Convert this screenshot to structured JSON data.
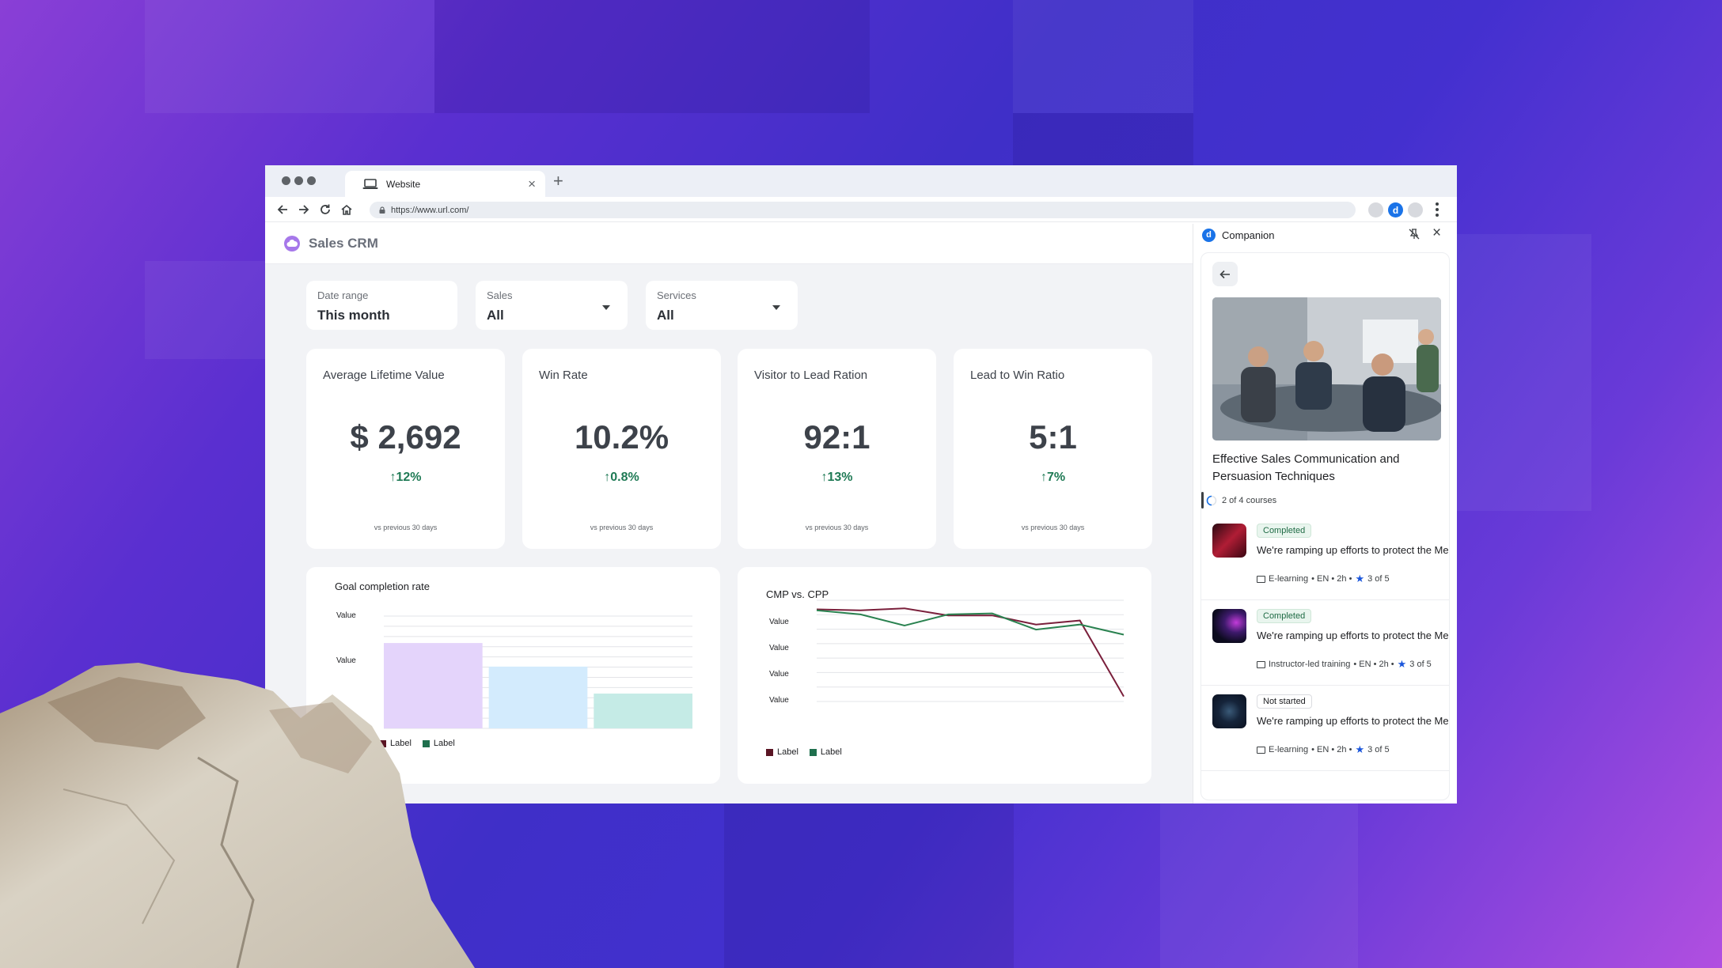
{
  "browser": {
    "tab_title": "Website",
    "new_tab_label": "+",
    "tab_close_label": "×",
    "url": "https://www.url.com/",
    "extension_letter": "d"
  },
  "app": {
    "title": "Sales CRM"
  },
  "filters": [
    {
      "label": "Date range",
      "value": "This month",
      "has_dropdown": false
    },
    {
      "label": "Sales",
      "value": "All",
      "has_dropdown": true
    },
    {
      "label": "Services",
      "value": "All",
      "has_dropdown": true
    }
  ],
  "kpis": [
    {
      "title": "Average Lifetime Value",
      "value": "$ 2,692",
      "change": "↑12%",
      "subtitle": "vs previous 30 days"
    },
    {
      "title": "Win Rate",
      "value": "10.2%",
      "change": "↑0.8%",
      "subtitle": "vs previous 30 days"
    },
    {
      "title": "Visitor to Lead Ration",
      "value": "92:1",
      "change": "↑13%",
      "subtitle": "vs previous 30 days"
    },
    {
      "title": "Lead to Win Ratio",
      "value": "5:1",
      "change": "↑7%",
      "subtitle": "vs previous 30 days"
    }
  ],
  "chart_data": [
    {
      "type": "bar",
      "title": "Goal completion rate",
      "y_tick_labels": [
        "Value",
        "Value"
      ],
      "values": [
        0.76,
        0.55,
        0.31
      ],
      "colors": [
        "#e4d4fb",
        "#d3ebfd",
        "#c5ebe6"
      ],
      "legend": [
        {
          "label": "Label",
          "color": "#5a1524"
        },
        {
          "label": "Label",
          "color": "#1f6f4d"
        }
      ]
    },
    {
      "type": "line",
      "title": "CMP vs. CPP",
      "y_tick_labels": [
        "Value",
        "Value",
        "Value",
        "Value"
      ],
      "series": [
        {
          "name": "Label",
          "color": "#7a1f3b",
          "values": [
            0.91,
            0.9,
            0.92,
            0.85,
            0.85,
            0.76,
            0.8,
            0.05
          ]
        },
        {
          "name": "Label",
          "color": "#2a8250",
          "values": [
            0.9,
            0.86,
            0.75,
            0.86,
            0.87,
            0.71,
            0.76,
            0.66
          ]
        }
      ],
      "legend": [
        {
          "label": "Label",
          "color": "#5a1524"
        },
        {
          "label": "Label",
          "color": "#1f6f4d"
        }
      ]
    }
  ],
  "companion": {
    "title": "Companion",
    "logo_letter": "d",
    "close_label": "×",
    "course_title": "Effective Sales Communication and Persuasion Techniques",
    "progress_text": "2 of 4 courses",
    "items": [
      {
        "status": "Completed",
        "completed": true,
        "description": "We're ramping up efforts to protect the Medium community from spam and fraud",
        "type": "E-learning",
        "meta": "• EN • 2h •",
        "rating": "3 of 5",
        "thumb": "red"
      },
      {
        "status": "Completed",
        "completed": true,
        "description": "We're ramping up efforts to protect the Medium community from spam and fraud",
        "type": "Instructor-led training",
        "meta": "• EN • 2h •",
        "rating": "3 of 5",
        "thumb": "purple"
      },
      {
        "status": "Not started",
        "completed": false,
        "description": "We're ramping up efforts to protect the Medium community from spam and fraud",
        "type": "E-learning",
        "meta": "• EN • 2h •",
        "rating": "3 of 5",
        "thumb": "dark"
      }
    ]
  }
}
